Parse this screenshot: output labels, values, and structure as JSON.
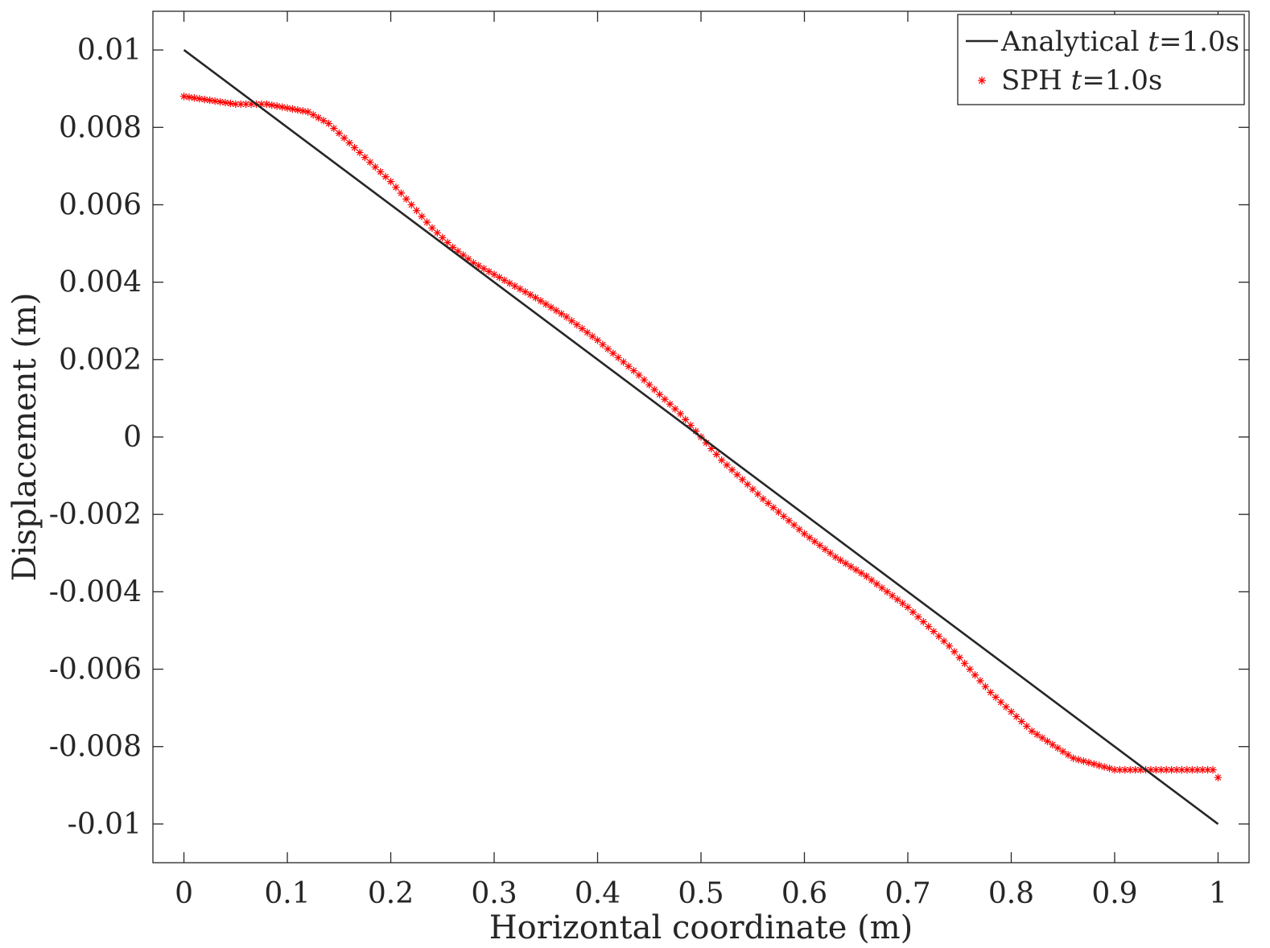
{
  "chart_data": {
    "type": "line",
    "title": "",
    "xlabel": "Horizontal coordinate (m)",
    "ylabel": "Displacement (m)",
    "xlim": [
      -0.03,
      1.03
    ],
    "ylim": [
      -0.011,
      0.011
    ],
    "xticks": [
      0,
      0.1,
      0.2,
      0.3,
      0.4,
      0.5,
      0.6,
      0.7,
      0.8,
      0.9,
      1
    ],
    "xtick_labels": [
      "0",
      "0.1",
      "0.2",
      "0.3",
      "0.4",
      "0.5",
      "0.6",
      "0.7",
      "0.8",
      "0.9",
      "1"
    ],
    "yticks": [
      -0.01,
      -0.008,
      -0.006,
      -0.004,
      -0.002,
      0,
      0.002,
      0.004,
      0.006,
      0.008,
      0.01
    ],
    "ytick_labels": [
      "-0.01",
      "-0.008",
      "-0.006",
      "-0.004",
      "-0.002",
      "0",
      "0.002",
      "0.004",
      "0.006",
      "0.008",
      "0.01"
    ],
    "grid": false,
    "legend_position": "top-right",
    "series": [
      {
        "name": "Analytical t=1.0s",
        "name_parts": {
          "prefix": "Analytical ",
          "italic": "t",
          "suffix": "=1.0s"
        },
        "style": "line",
        "color": "#262626",
        "x": [
          0,
          1
        ],
        "y": [
          0.01,
          -0.01
        ]
      },
      {
        "name": "SPH t=1.0s",
        "name_parts": {
          "prefix": "SPH ",
          "italic": "t",
          "suffix": "=1.0s"
        },
        "style": "markers",
        "marker": "asterisk",
        "color": "#ff0000",
        "x": [
          0,
          0.05,
          0.08,
          0.1,
          0.12,
          0.14,
          0.16,
          0.18,
          0.2,
          0.22,
          0.24,
          0.26,
          0.28,
          0.3,
          0.34,
          0.37,
          0.4,
          0.44,
          0.48,
          0.52,
          0.56,
          0.6,
          0.63,
          0.66,
          0.7,
          0.74,
          0.78,
          0.82,
          0.86,
          0.9,
          0.95,
          0.995,
          1.0
        ],
        "y": [
          0.0088,
          0.0086,
          0.0086,
          0.0085,
          0.0084,
          0.0081,
          0.0076,
          0.0071,
          0.0066,
          0.006,
          0.0054,
          0.0049,
          0.0045,
          0.0042,
          0.0036,
          0.0031,
          0.0025,
          0.0016,
          0.0006,
          -0.0006,
          -0.0016,
          -0.0025,
          -0.0031,
          -0.0036,
          -0.0044,
          -0.0054,
          -0.0066,
          -0.0076,
          -0.0083,
          -0.0086,
          -0.0086,
          -0.0086,
          -0.0088
        ],
        "point_count": 201
      }
    ]
  }
}
